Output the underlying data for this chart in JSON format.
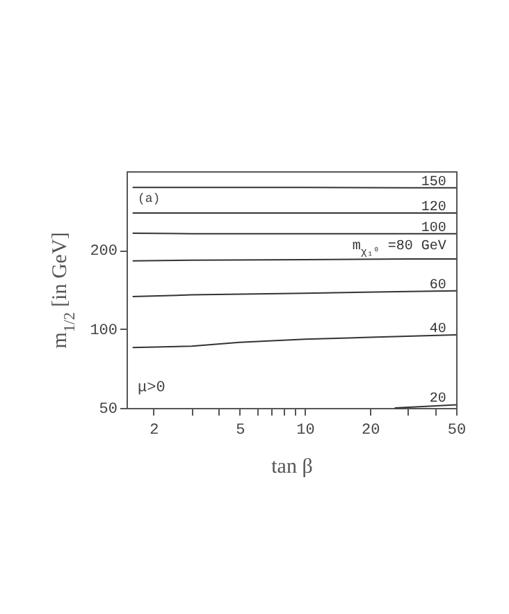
{
  "chart_data": {
    "type": "line",
    "xlabel": "tan β",
    "ylabel": "m$_{1/2}$ [in GeV]",
    "log": "xy",
    "grid": false,
    "xlim": [
      1.5,
      50
    ],
    "ylim": [
      50,
      400
    ],
    "xticks": [
      2,
      {
        "value": 3,
        "label": null
      },
      {
        "value": 4,
        "label": null
      },
      5,
      {
        "value": 6,
        "label": null
      },
      {
        "value": 7,
        "label": null
      },
      {
        "value": 8,
        "label": null
      },
      {
        "value": 9,
        "label": null
      },
      10,
      20,
      {
        "value": 30,
        "label": null
      },
      {
        "value": 40,
        "label": null
      },
      50
    ],
    "yticks": [
      50,
      100,
      200
    ],
    "series": [
      {
        "name": "150",
        "color": "#333333",
        "x": [
          1.6,
          3,
          10,
          30,
          50
        ],
        "values": [
          347,
          347,
          347,
          346,
          346
        ]
      },
      {
        "name": "120",
        "color": "#333333",
        "x": [
          1.6,
          3,
          10,
          30,
          50
        ],
        "values": [
          277,
          277,
          277,
          277,
          277
        ]
      },
      {
        "name": "100",
        "color": "#333333",
        "x": [
          1.6,
          3,
          10,
          30,
          50
        ],
        "values": [
          232,
          231,
          231,
          231,
          231
        ]
      },
      {
        "name": "m$_{χ₁⁰}$ =80 GeV",
        "color": "#333333",
        "x": [
          1.6,
          3,
          10,
          30,
          50
        ],
        "values": [
          182,
          183,
          184,
          185,
          185
        ]
      },
      {
        "name": "60",
        "color": "#333333",
        "x": [
          1.6,
          3,
          10,
          30,
          50
        ],
        "values": [
          133,
          135,
          137,
          139,
          140
        ]
      },
      {
        "name": "40",
        "color": "#333333",
        "x": [
          1.6,
          3,
          5,
          10,
          20,
          50
        ],
        "values": [
          85,
          86,
          89,
          91.5,
          93,
          95
        ]
      },
      {
        "name": "20",
        "color": "#333333",
        "x": [
          26,
          35,
          50
        ],
        "values": [
          50,
          50.6,
          51.4
        ]
      }
    ],
    "annotations": [
      "(a)",
      "μ>0"
    ]
  }
}
